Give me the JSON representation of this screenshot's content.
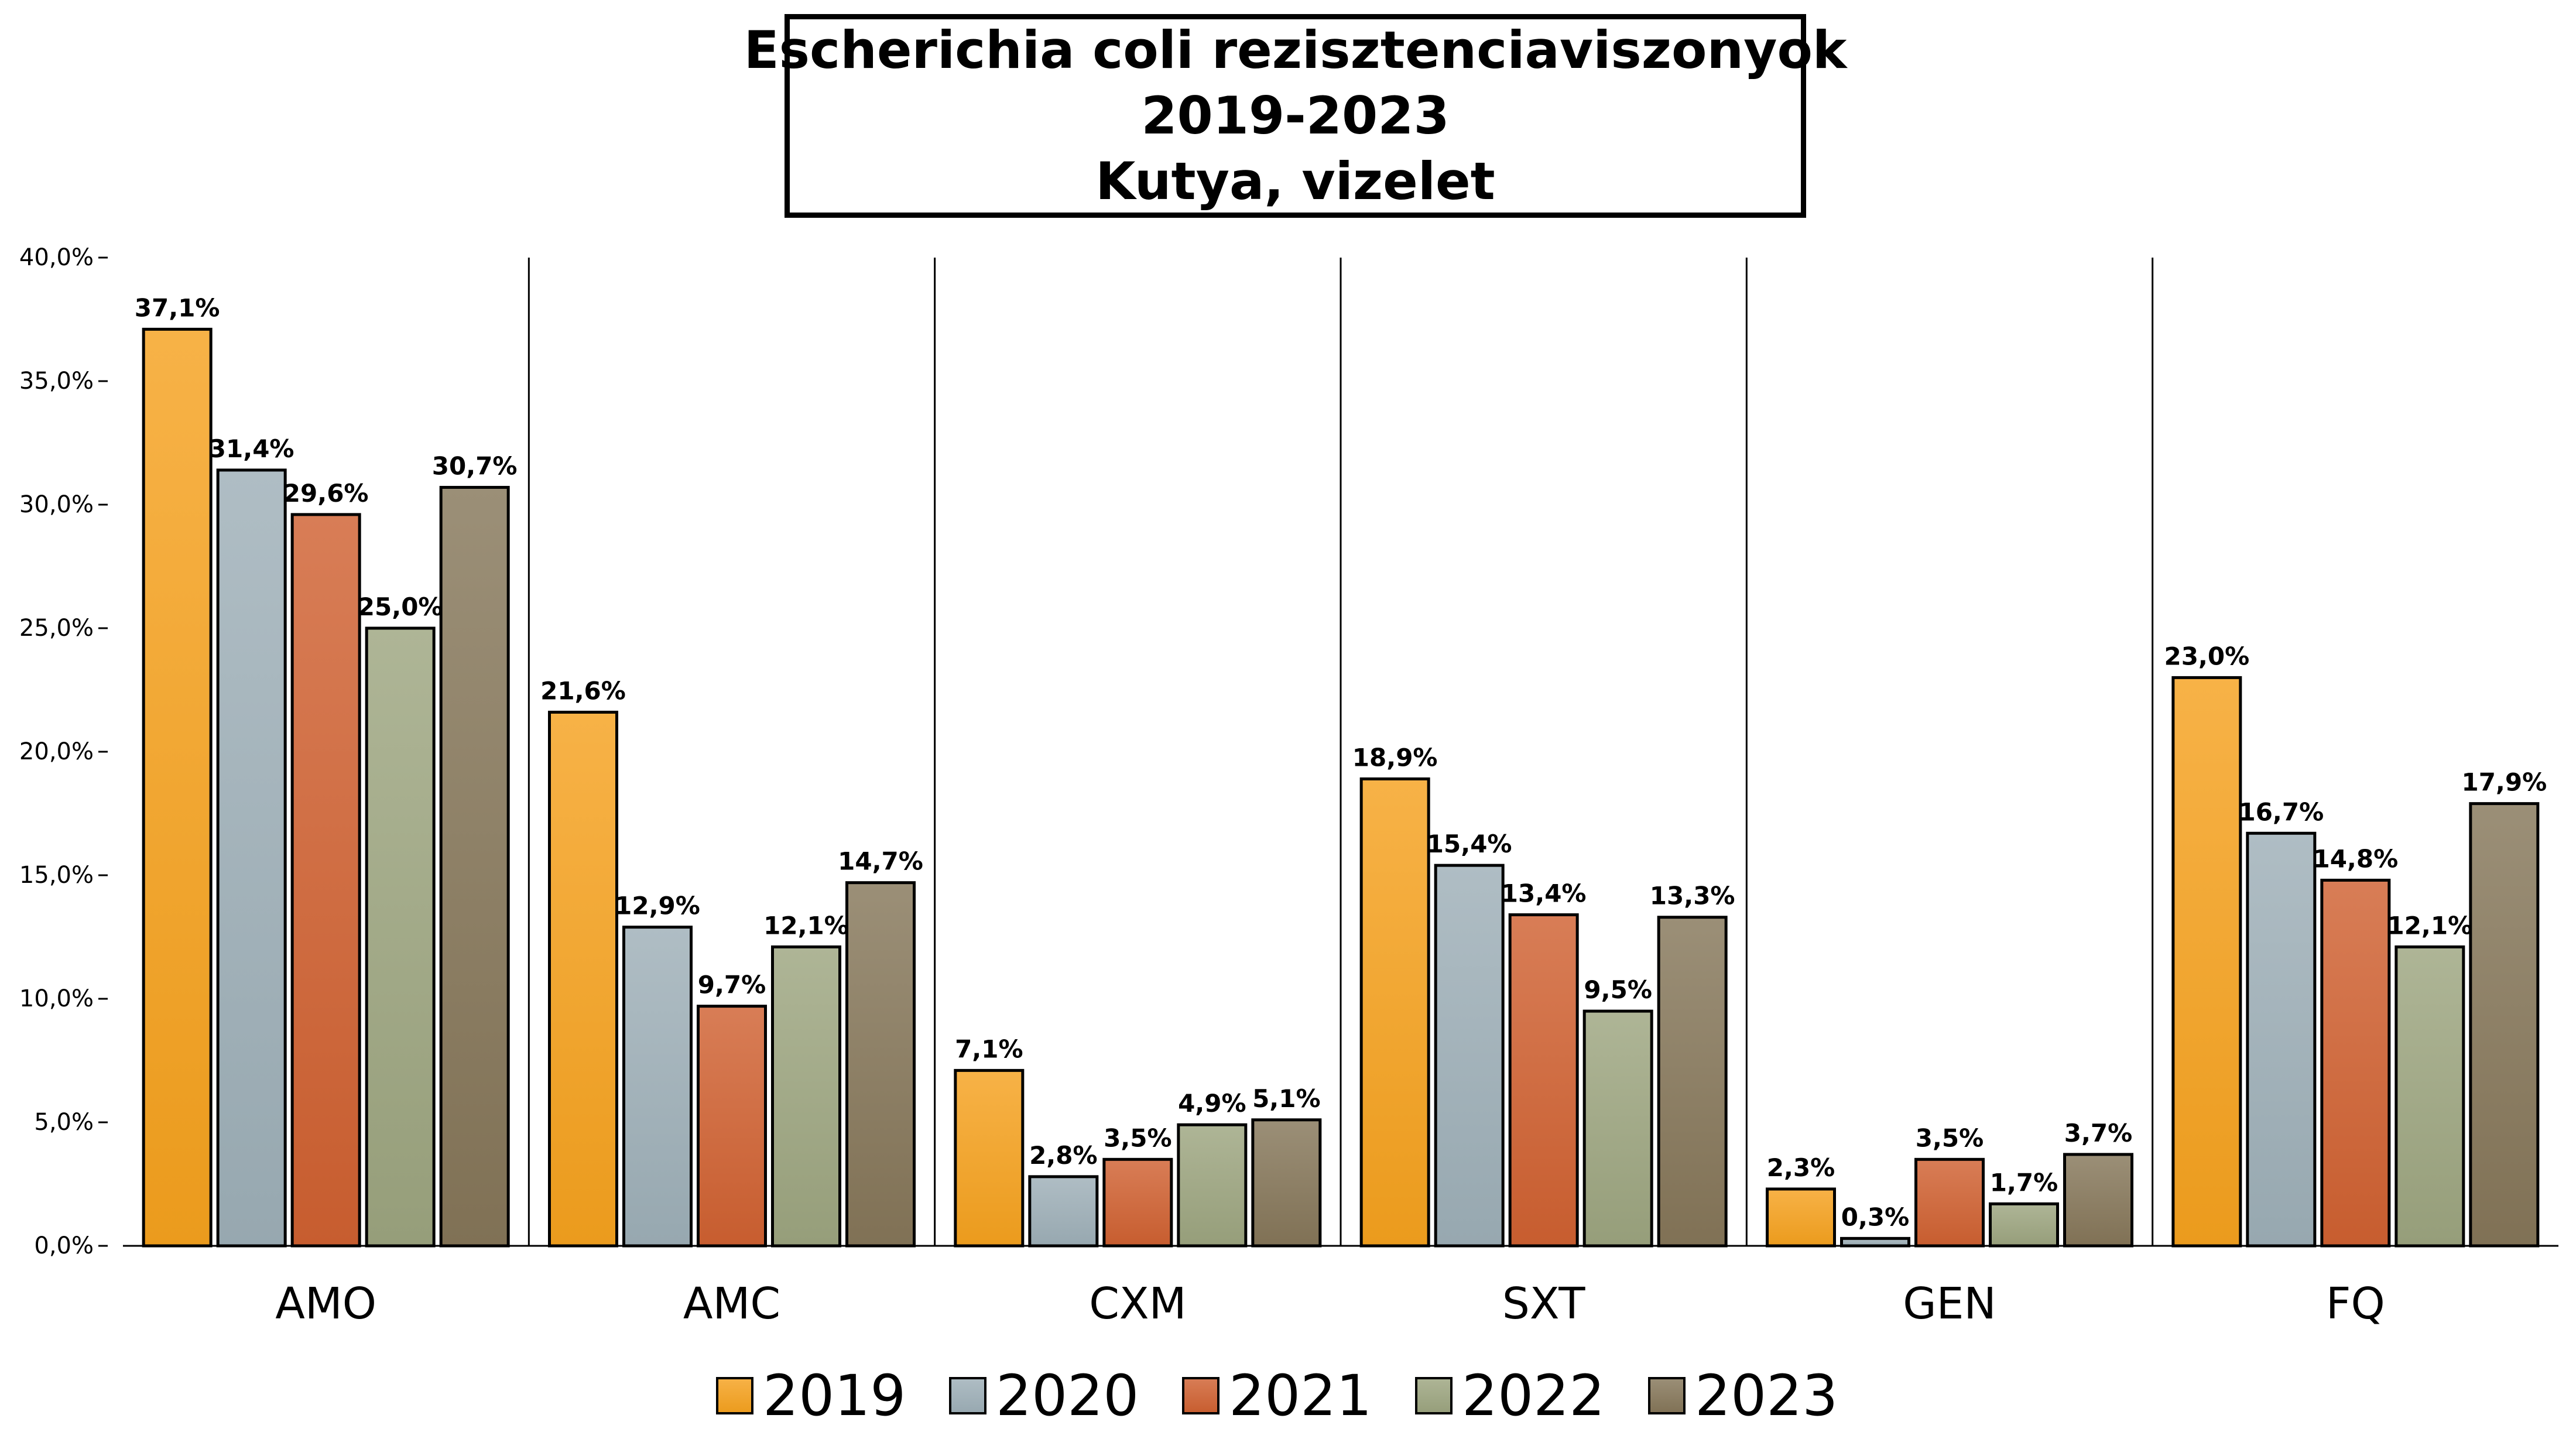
{
  "chart_data": {
    "type": "bar",
    "title": [
      "Escherichia coli rezisztenciaviszonyok",
      "2019-2023",
      "Kutya, vizelet"
    ],
    "categories": [
      "AMO",
      "AMC",
      "CXM",
      "SXT",
      "GEN",
      "FQ"
    ],
    "ylim": [
      0,
      40
    ],
    "yticks": [
      "0,0%",
      "5,0%",
      "10,0%",
      "15,0%",
      "20,0%",
      "25,0%",
      "30,0%",
      "35,0%",
      "40,0%"
    ],
    "series": [
      {
        "name": "2019",
        "color": "#F5A11E",
        "values": [
          37.1,
          21.6,
          7.1,
          18.9,
          2.3,
          23.0
        ],
        "labels": [
          "37,1%",
          "21,6%",
          "7,1%",
          "18,9%",
          "2,3%",
          "23,0%"
        ]
      },
      {
        "name": "2020",
        "color": "#9DAFB7",
        "values": [
          31.4,
          12.9,
          2.8,
          15.4,
          0.3,
          16.7
        ],
        "labels": [
          "31,4%",
          "12,9%",
          "2,8%",
          "15,4%",
          "0,3%",
          "16,7%"
        ]
      },
      {
        "name": "2021",
        "color": "#CF6131",
        "values": [
          29.6,
          9.7,
          3.5,
          13.4,
          3.5,
          14.8
        ],
        "labels": [
          "29,6%",
          "9,7%",
          "3,5%",
          "13,4%",
          "3,5%",
          "14,8%"
        ]
      },
      {
        "name": "2022",
        "color": "#9CA57F",
        "values": [
          25.0,
          12.1,
          4.9,
          9.5,
          1.7,
          12.1
        ],
        "labels": [
          "25,0%",
          "12,1%",
          "4,9%",
          "9,5%",
          "1,7%",
          "12,1%"
        ]
      },
      {
        "name": "2023",
        "color": "#857659",
        "values": [
          30.7,
          14.7,
          5.1,
          13.3,
          3.7,
          17.9
        ],
        "labels": [
          "30,7%",
          "14,7%",
          "5,1%",
          "13,3%",
          "3,7%",
          "17,9%"
        ]
      }
    ],
    "grid": false,
    "category_separators": true,
    "legend_position": "bottom"
  }
}
